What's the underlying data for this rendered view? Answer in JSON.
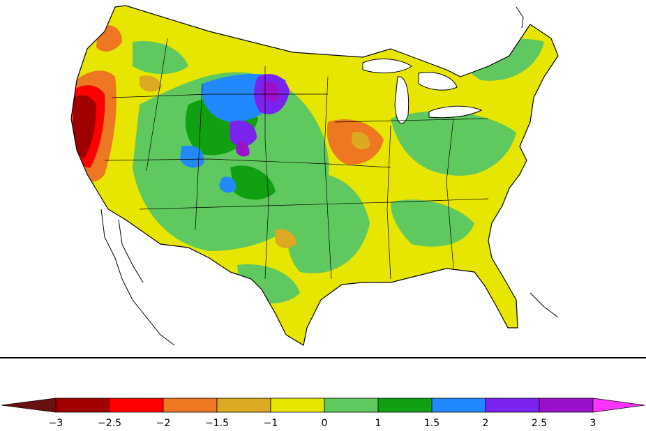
{
  "map": {
    "region": "contiguous-united-states",
    "overlay": "gridded-anomaly-field"
  },
  "colorbar": {
    "tick_labels": [
      "−3",
      "−2.5",
      "−2",
      "−1.5",
      "−1",
      "0",
      "1",
      "1.5",
      "2",
      "2.5",
      "3"
    ],
    "low_extension_color": "#6b1010",
    "high_extension_color": "#ff33ff",
    "bins": [
      {
        "color": "#a00000"
      },
      {
        "color": "#ff0000"
      },
      {
        "color": "#ee7722"
      },
      {
        "color": "#dda822"
      },
      {
        "color": "#e6e600"
      },
      {
        "color": "#5fc95f"
      },
      {
        "color": "#11a011"
      },
      {
        "color": "#2288ff"
      },
      {
        "color": "#7a22ee"
      },
      {
        "color": "#9a11cc"
      }
    ]
  }
}
